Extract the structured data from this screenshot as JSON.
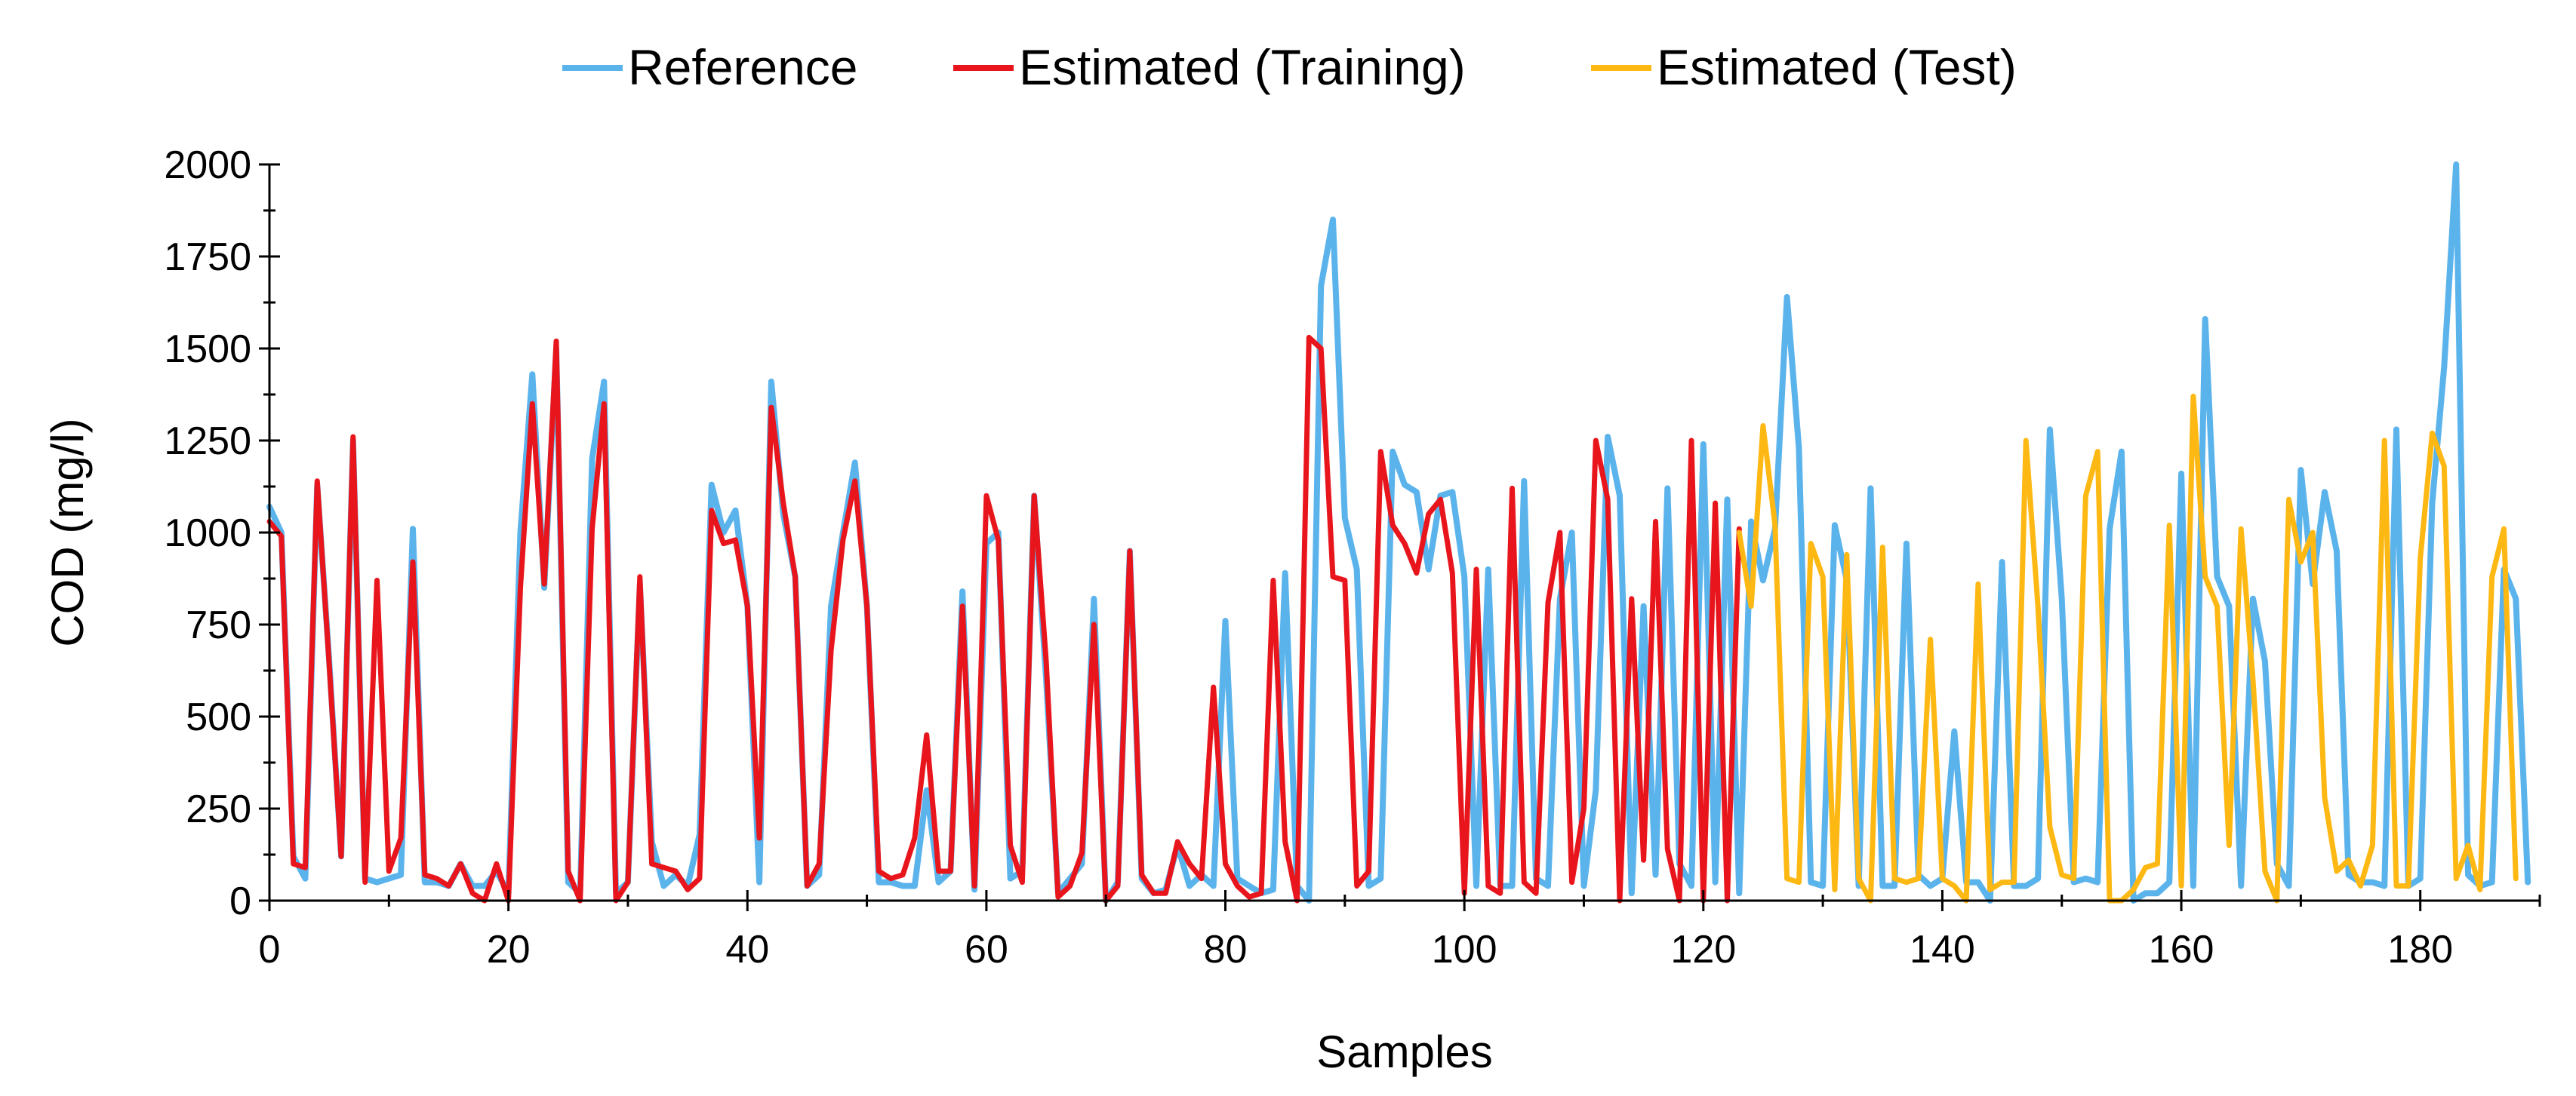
{
  "chart_data": {
    "type": "line",
    "title": "",
    "xlabel": "Samples",
    "ylabel": "COD (mg/l)",
    "xlim": [
      0,
      190
    ],
    "ylim": [
      0,
      2000
    ],
    "x_ticks": [
      "0",
      "20",
      "40",
      "60",
      "80",
      "100",
      "120",
      "140",
      "160",
      "180"
    ],
    "x_tick_values": [
      0,
      20,
      40,
      60,
      80,
      100,
      120,
      140,
      160,
      180
    ],
    "y_ticks": [
      "0",
      "250",
      "500",
      "750",
      "1000",
      "1250",
      "1500",
      "1750",
      "2000"
    ],
    "y_tick_values": [
      0,
      250,
      500,
      750,
      1000,
      1250,
      1500,
      1750,
      2000
    ],
    "legend_position": "top-center",
    "grid": false,
    "series": [
      {
        "name": "Reference",
        "color": "#5BB3EC",
        "x_start": 0,
        "values": [
          1070,
          1000,
          120,
          60,
          1130,
          650,
          120,
          1250,
          60,
          50,
          60,
          70,
          1010,
          50,
          50,
          40,
          100,
          40,
          40,
          80,
          20,
          1000,
          1430,
          850,
          1500,
          50,
          20,
          1200,
          1410,
          20,
          50,
          860,
          160,
          40,
          70,
          40,
          180,
          1130,
          1000,
          1060,
          800,
          50,
          1410,
          1050,
          880,
          40,
          70,
          800,
          1000,
          1190,
          800,
          50,
          50,
          40,
          40,
          300,
          50,
          80,
          840,
          30,
          970,
          1000,
          60,
          80,
          1100,
          600,
          20,
          60,
          100,
          820,
          0,
          50,
          950,
          60,
          20,
          30,
          150,
          40,
          70,
          40,
          760,
          60,
          40,
          20,
          30,
          890,
          40,
          0,
          1670,
          1850,
          1040,
          900,
          40,
          60,
          1220,
          1130,
          1110,
          900,
          1100,
          1110,
          880,
          40,
          900,
          40,
          40,
          1140,
          60,
          40,
          820,
          1000,
          40,
          300,
          1260,
          1100,
          20,
          800,
          70,
          1120,
          100,
          40,
          1240,
          50,
          1090,
          20,
          1030,
          870,
          1010,
          1640,
          1230,
          50,
          40,
          1020,
          870,
          40,
          1120,
          40,
          40,
          970,
          70,
          40,
          60,
          460,
          50,
          50,
          0,
          920,
          40,
          40,
          60,
          1280,
          820,
          50,
          60,
          50,
          1010,
          1220,
          0,
          20,
          20,
          50,
          1160,
          40,
          1580,
          880,
          800,
          40,
          820,
          650,
          100,
          40,
          1170,
          860,
          1110,
          950,
          70,
          50,
          50,
          40,
          1280,
          40,
          60,
          1080,
          1450,
          2000,
          70,
          40,
          50,
          900,
          820,
          50
        ]
      },
      {
        "name": "Estimated (Training)",
        "color": "#E8161C",
        "x_start": 0,
        "values": [
          1030,
          990,
          100,
          90,
          1140,
          640,
          120,
          1260,
          50,
          870,
          80,
          170,
          920,
          70,
          60,
          40,
          100,
          20,
          0,
          100,
          0,
          850,
          1350,
          860,
          1520,
          80,
          0,
          1010,
          1350,
          0,
          50,
          880,
          100,
          90,
          80,
          30,
          60,
          1060,
          970,
          980,
          800,
          170,
          1340,
          1080,
          880,
          40,
          100,
          680,
          980,
          1140,
          800,
          80,
          60,
          70,
          170,
          450,
          80,
          80,
          800,
          40,
          1100,
          980,
          150,
          50,
          1100,
          650,
          10,
          40,
          130,
          750,
          0,
          40,
          950,
          70,
          20,
          20,
          160,
          100,
          60,
          580,
          100,
          40,
          10,
          20,
          870,
          160,
          0,
          1530,
          1500,
          880,
          870,
          40,
          80,
          1220,
          1020,
          970,
          890,
          1050,
          1090,
          890,
          20,
          900,
          40,
          20,
          1120,
          50,
          20,
          810,
          1000,
          50,
          250,
          1250,
          1090,
          0,
          820,
          110,
          1030,
          140,
          0,
          1250,
          0,
          1080,
          0,
          1010
        ]
      },
      {
        "name": "Estimated (Test)",
        "color": "#FDB813",
        "x_start": 123,
        "values": [
          1000,
          800,
          1290,
          1020,
          60,
          50,
          970,
          880,
          30,
          940,
          60,
          0,
          960,
          60,
          50,
          60,
          710,
          60,
          40,
          0,
          860,
          30,
          50,
          50,
          1250,
          800,
          200,
          70,
          60,
          1100,
          1220,
          0,
          0,
          30,
          90,
          100,
          1020,
          40,
          1370,
          880,
          800,
          150,
          1010,
          600,
          80,
          0,
          1090,
          920,
          1000,
          280,
          80,
          110,
          40,
          150,
          1250,
          40,
          40,
          930,
          1270,
          1180,
          60,
          150,
          30,
          880,
          1010,
          60
        ]
      }
    ]
  }
}
